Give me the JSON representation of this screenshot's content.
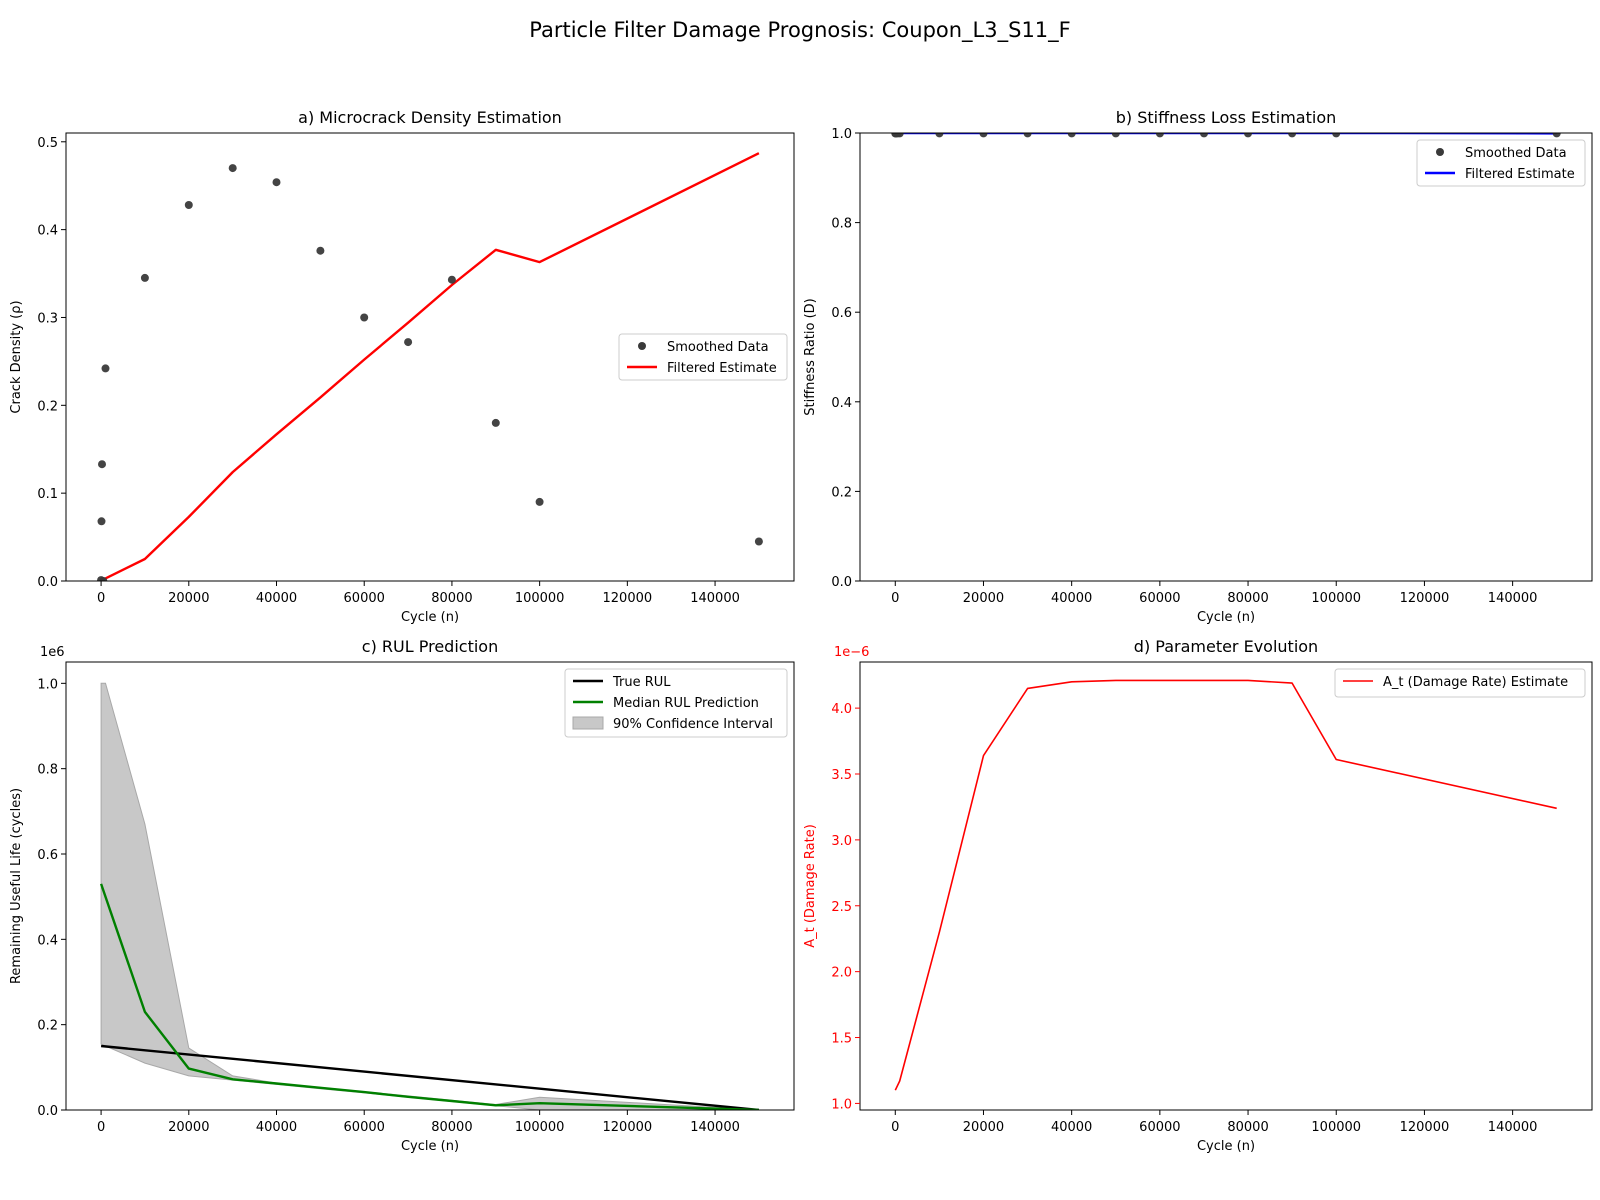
{
  "figure": {
    "suptitle": "Particle Filter Damage Prognosis: Coupon_L3_S11_F"
  },
  "chart_data": [
    {
      "id": "a",
      "type": "scatter",
      "title": "a) Microcrack Density Estimation",
      "xlabel": "Cycle (n)",
      "ylabel": "Crack Density (ρ)",
      "xlim": [
        -8000,
        158000
      ],
      "ylim": [
        0,
        0.51
      ],
      "xticks": [
        0,
        20000,
        40000,
        60000,
        80000,
        100000,
        120000,
        140000
      ],
      "yticks": [
        0.0,
        0.1,
        0.2,
        0.3,
        0.4,
        0.5
      ],
      "ytick_labels": [
        "0.0",
        "0.1",
        "0.2",
        "0.3",
        "0.4",
        "0.5"
      ],
      "legend_position": "center-right",
      "series": [
        {
          "name": "Smoothed Data",
          "kind": "scatter",
          "color": "#3a3a3a",
          "x": [
            0,
            100,
            200,
            500,
            1000,
            10000,
            20000,
            30000,
            40000,
            50000,
            60000,
            70000,
            80000,
            90000,
            100000,
            150000
          ],
          "y": [
            0.001,
            0.068,
            0.133,
            0.0,
            0.242,
            0.345,
            0.428,
            0.47,
            0.454,
            0.376,
            0.3,
            0.272,
            0.343,
            0.18,
            0.09,
            0.045
          ]
        },
        {
          "name": "Filtered Estimate",
          "kind": "line",
          "color": "#ff0000",
          "x": [
            0,
            1000,
            10000,
            20000,
            30000,
            40000,
            50000,
            60000,
            70000,
            80000,
            90000,
            100000,
            150000
          ],
          "y": [
            0.0,
            0.003,
            0.025,
            0.073,
            0.124,
            0.167,
            0.209,
            0.252,
            0.294,
            0.337,
            0.377,
            0.363,
            0.487
          ]
        }
      ]
    },
    {
      "id": "b",
      "type": "line",
      "title": "b) Stiffness Loss Estimation",
      "xlabel": "Cycle (n)",
      "ylabel": "Stiffness Ratio (D)",
      "xlim": [
        -8000,
        158000
      ],
      "ylim": [
        0,
        1.0
      ],
      "xticks": [
        0,
        20000,
        40000,
        60000,
        80000,
        100000,
        120000,
        140000
      ],
      "yticks": [
        0.0,
        0.2,
        0.4,
        0.6,
        0.8,
        1.0
      ],
      "ytick_labels": [
        "0.0",
        "0.2",
        "0.4",
        "0.6",
        "0.8",
        "1.0"
      ],
      "legend_position": "upper-right",
      "series": [
        {
          "name": "Smoothed Data",
          "kind": "scatter",
          "color": "#3a3a3a",
          "x": [
            0,
            100,
            200,
            500,
            1000,
            10000,
            20000,
            30000,
            40000,
            50000,
            60000,
            70000,
            80000,
            90000,
            100000,
            150000
          ],
          "y": [
            0.999,
            0.999,
            0.999,
            0.999,
            0.999,
            0.999,
            0.999,
            0.999,
            0.999,
            0.999,
            0.999,
            0.999,
            0.999,
            0.999,
            0.999,
            0.999
          ]
        },
        {
          "name": "Filtered Estimate",
          "kind": "line",
          "color": "#0000ff",
          "x": [
            0,
            1000,
            10000,
            20000,
            30000,
            40000,
            50000,
            60000,
            70000,
            80000,
            90000,
            100000,
            150000
          ],
          "y": [
            1.0,
            1.0,
            1.0,
            1.0,
            1.0,
            1.0,
            1.0,
            1.0,
            1.0,
            1.0,
            1.0,
            1.0,
            0.999
          ]
        }
      ]
    },
    {
      "id": "c",
      "type": "line",
      "title": "c) RUL Prediction",
      "xlabel": "Cycle (n)",
      "ylabel": "Remaining Useful Life (cycles)",
      "y_offset_label": "1e6",
      "xlim": [
        -8000,
        158000
      ],
      "ylim": [
        0,
        1050000
      ],
      "xticks": [
        0,
        20000,
        40000,
        60000,
        80000,
        100000,
        120000,
        140000
      ],
      "yticks": [
        0,
        200000,
        400000,
        600000,
        800000,
        1000000
      ],
      "ytick_labels": [
        "0.0",
        "0.2",
        "0.4",
        "0.6",
        "0.8",
        "1.0"
      ],
      "legend_position": "upper-right",
      "series": [
        {
          "name": "True RUL",
          "kind": "line",
          "color": "#000000",
          "x": [
            0,
            150000
          ],
          "y": [
            150000,
            0
          ]
        },
        {
          "name": "Median RUL Prediction",
          "kind": "line",
          "color": "#008000",
          "x": [
            0,
            10000,
            20000,
            30000,
            40000,
            50000,
            60000,
            70000,
            80000,
            90000,
            100000,
            150000
          ],
          "y": [
            530000,
            230000,
            97000,
            72000,
            62000,
            52000,
            42000,
            31000,
            21000,
            11000,
            16000,
            0
          ]
        },
        {
          "name": "90% Confidence Interval",
          "kind": "band",
          "color": "#c8c8c8",
          "x": [
            0,
            1000,
            10000,
            20000,
            30000,
            40000,
            50000,
            60000,
            70000,
            80000,
            90000,
            100000,
            150000
          ],
          "lower": [
            155000,
            150000,
            110000,
            80000,
            70000,
            60000,
            50000,
            40000,
            30000,
            20000,
            10000,
            0,
            0
          ],
          "upper": [
            1000000,
            1000000,
            670000,
            145000,
            80000,
            63000,
            53000,
            43000,
            33000,
            23000,
            13000,
            30000,
            0
          ]
        }
      ]
    },
    {
      "id": "d",
      "type": "line",
      "title": "d) Parameter Evolution",
      "xlabel": "Cycle (n)",
      "ylabel": "A_t (Damage Rate)",
      "y_offset_label": "1e−6",
      "axis_color": "#ff0000",
      "xlim": [
        -8000,
        158000
      ],
      "ylim": [
        0.95,
        4.35
      ],
      "y_unit_multiplier": "1e-6",
      "xticks": [
        0,
        20000,
        40000,
        60000,
        80000,
        100000,
        120000,
        140000
      ],
      "yticks": [
        1.0,
        1.5,
        2.0,
        2.5,
        3.0,
        3.5,
        4.0
      ],
      "ytick_labels": [
        "1.0",
        "1.5",
        "2.0",
        "2.5",
        "3.0",
        "3.5",
        "4.0"
      ],
      "legend_position": "upper-right",
      "series": [
        {
          "name": "A_t (Damage Rate) Estimate",
          "kind": "line",
          "color": "#ff0000",
          "x": [
            0,
            1000,
            10000,
            20000,
            30000,
            40000,
            50000,
            60000,
            70000,
            80000,
            90000,
            100000,
            150000
          ],
          "y": [
            1.1,
            1.17,
            2.3,
            3.64,
            4.15,
            4.2,
            4.21,
            4.21,
            4.21,
            4.21,
            4.19,
            3.61,
            3.24
          ]
        }
      ]
    }
  ]
}
